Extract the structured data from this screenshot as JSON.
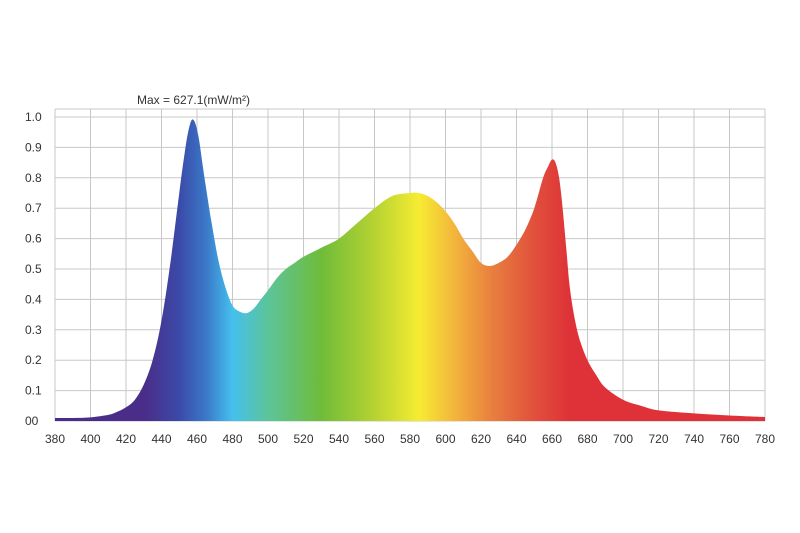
{
  "chart_data": {
    "type": "area",
    "annotation": "Max = 627.1(mW/m²)",
    "x_ticks": [
      "380",
      "400",
      "420",
      "440",
      "460",
      "480",
      "500",
      "520",
      "540",
      "560",
      "580",
      "600",
      "620",
      "640",
      "660",
      "680",
      "700",
      "720",
      "740",
      "760",
      "780"
    ],
    "y_ticks": [
      "00",
      "0.1",
      "0.2",
      "0.3",
      "0.4",
      "0.5",
      "0.6",
      "0.7",
      "0.8",
      "0.9",
      "1.0"
    ],
    "xlim": [
      380,
      780
    ],
    "ylim": [
      0,
      1.0
    ],
    "grid": true,
    "series": [
      {
        "x": [
          380,
          390,
          400,
          410,
          415,
          420,
          425,
          430,
          435,
          440,
          445,
          450,
          453,
          455,
          457,
          459,
          461,
          463,
          465,
          468,
          472,
          476,
          480,
          484,
          488,
          492,
          496,
          500,
          505,
          510,
          515,
          520,
          530,
          540,
          550,
          560,
          570,
          580,
          585,
          590,
          595,
          600,
          605,
          610,
          615,
          620,
          625,
          630,
          635,
          640,
          645,
          650,
          655,
          658,
          660,
          662,
          664,
          666,
          668,
          670,
          673,
          676,
          680,
          685,
          690,
          700,
          710,
          720,
          740,
          760,
          780
        ],
        "y": [
          0.01,
          0.01,
          0.012,
          0.02,
          0.03,
          0.045,
          0.07,
          0.12,
          0.2,
          0.33,
          0.52,
          0.75,
          0.88,
          0.95,
          0.99,
          0.98,
          0.93,
          0.85,
          0.77,
          0.66,
          0.53,
          0.44,
          0.38,
          0.36,
          0.355,
          0.37,
          0.4,
          0.43,
          0.47,
          0.5,
          0.52,
          0.54,
          0.57,
          0.6,
          0.65,
          0.7,
          0.74,
          0.75,
          0.75,
          0.74,
          0.72,
          0.69,
          0.65,
          0.6,
          0.56,
          0.52,
          0.51,
          0.52,
          0.54,
          0.58,
          0.63,
          0.7,
          0.8,
          0.84,
          0.86,
          0.85,
          0.8,
          0.7,
          0.57,
          0.44,
          0.33,
          0.26,
          0.2,
          0.15,
          0.11,
          0.07,
          0.05,
          0.035,
          0.025,
          0.018,
          0.013
        ]
      }
    ],
    "gradient_stops": [
      {
        "wavelength": 430,
        "color": "#4a2d88"
      },
      {
        "wavelength": 450,
        "color": "#3b4aa8"
      },
      {
        "wavelength": 465,
        "color": "#3a78c8"
      },
      {
        "wavelength": 480,
        "color": "#45c0ee"
      },
      {
        "wavelength": 500,
        "color": "#5cc49a"
      },
      {
        "wavelength": 530,
        "color": "#6fbc3a"
      },
      {
        "wavelength": 560,
        "color": "#b6d232"
      },
      {
        "wavelength": 585,
        "color": "#f6ec32"
      },
      {
        "wavelength": 605,
        "color": "#f3b53c"
      },
      {
        "wavelength": 625,
        "color": "#e9823e"
      },
      {
        "wavelength": 650,
        "color": "#e1503c"
      },
      {
        "wavelength": 670,
        "color": "#de3238"
      },
      {
        "wavelength": 780,
        "color": "#de3238"
      }
    ]
  }
}
